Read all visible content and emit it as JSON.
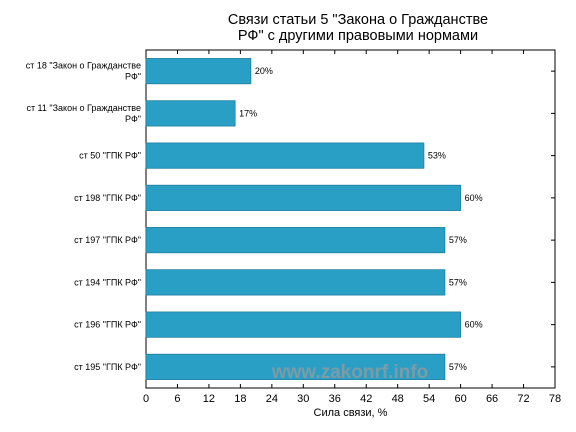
{
  "chart_data": {
    "type": "bar",
    "orientation": "horizontal",
    "title_lines": [
      "Связи статьи 5 \"Закона о Гражданстве",
      "РФ\" с другими правовыми нормами"
    ],
    "xlabel": "Сила связи, %",
    "ylabel": "",
    "xlim": [
      0,
      78
    ],
    "xticks": [
      0,
      6,
      12,
      18,
      24,
      30,
      36,
      42,
      48,
      54,
      60,
      66,
      72,
      78
    ],
    "categories": [
      [
        "ст 18 \"Закон о Гражданстве",
        "РФ\""
      ],
      [
        "ст 11 \"Закон о Гражданстве",
        "РФ\""
      ],
      [
        "ст 50 \"ГПК РФ\""
      ],
      [
        "ст 198 \"ГПК РФ\""
      ],
      [
        "ст 197 \"ГПК РФ\""
      ],
      [
        "ст 194 \"ГПК РФ\""
      ],
      [
        "ст 196 \"ГПК РФ\""
      ],
      [
        "ст 195 \"ГПК РФ\""
      ]
    ],
    "values": [
      20,
      17,
      53,
      60,
      57,
      57,
      60,
      57
    ],
    "value_labels": [
      "20%",
      "17%",
      "53%",
      "60%",
      "57%",
      "57%",
      "60%",
      "57%"
    ],
    "bar_color": "#2a9fc6",
    "grid": false,
    "legend": "none",
    "watermark": "www.zakonrf.info"
  }
}
